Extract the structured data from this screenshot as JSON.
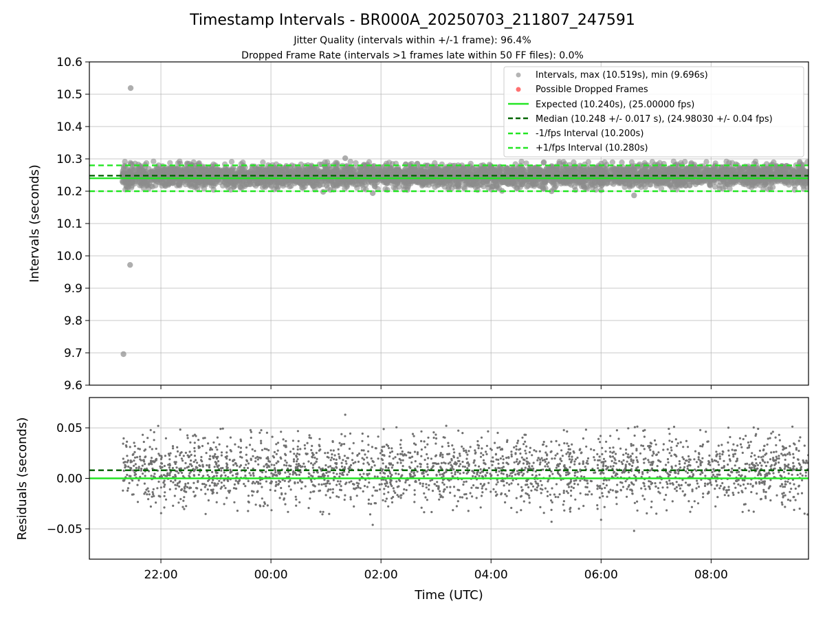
{
  "figure": {
    "title": "Timestamp Intervals - BR000A_20250703_211807_247591",
    "subtitle_1": "Jitter Quality (intervals within +/-1 frame): 96.4%",
    "subtitle_2": "Dropped Frame Rate (intervals >1 frames late within 50 FF files): 0.0%"
  },
  "colors": {
    "intervals": "#8c8c8c",
    "residuals": "#707070",
    "dropped": "#ff4d4d",
    "expected": "#22e622",
    "median": "#006400",
    "fps_band": "#22e622",
    "grid": "#b0b0b0"
  },
  "chart_data": [
    {
      "id": "intervals",
      "type": "scatter",
      "ylabel": "Intervals (seconds)",
      "xlabel": "",
      "x_unit": "hours since 00:00 UTC 2025-07-04",
      "xlim": [
        -3.3,
        9.77
      ],
      "ylim": [
        9.6,
        10.6
      ],
      "grid": true,
      "legend_position": "top-right",
      "x_ticks": [
        {
          "value": -2,
          "label": "22:00"
        },
        {
          "value": 0,
          "label": "00:00"
        },
        {
          "value": 2,
          "label": "02:00"
        },
        {
          "value": 4,
          "label": "04:00"
        },
        {
          "value": 6,
          "label": "06:00"
        },
        {
          "value": 8,
          "label": "08:00"
        }
      ],
      "y_ticks": [
        {
          "value": 9.6,
          "label": "9.6"
        },
        {
          "value": 9.7,
          "label": "9.7"
        },
        {
          "value": 9.8,
          "label": "9.8"
        },
        {
          "value": 9.9,
          "label": "9.9"
        },
        {
          "value": 10.0,
          "label": "10.0"
        },
        {
          "value": 10.1,
          "label": "10.1"
        },
        {
          "value": 10.2,
          "label": "10.2"
        },
        {
          "value": 10.3,
          "label": "10.3"
        },
        {
          "value": 10.4,
          "label": "10.4"
        },
        {
          "value": 10.5,
          "label": "10.5"
        },
        {
          "value": 10.6,
          "label": "10.6"
        }
      ],
      "series": [
        {
          "name": "Intervals, max (10.519s), min (9.696s)",
          "kind": "scatter",
          "x_range": [
            -2.7,
            9.77
          ],
          "y_mean": 10.248,
          "y_std": 0.017,
          "points": [
            {
              "x": -2.55,
              "y": 10.519
            },
            {
              "x": -2.56,
              "y": 9.972
            },
            {
              "x": -2.68,
              "y": 9.696
            },
            {
              "x": 1.35,
              "y": 10.302
            },
            {
              "x": 1.85,
              "y": 10.194
            },
            {
              "x": 6.6,
              "y": 10.187
            },
            {
              "x": 0.95,
              "y": 10.198
            },
            {
              "x": 4.2,
              "y": 10.201
            },
            {
              "x": 6.0,
              "y": 10.203
            },
            {
              "x": 5.1,
              "y": 10.2
            }
          ]
        },
        {
          "name": "Possible Dropped Frames",
          "kind": "scatter",
          "points": []
        },
        {
          "name": "Expected (10.240s), (25.00000 fps)",
          "kind": "hline",
          "y": 10.24
        },
        {
          "name": "Median (10.248 +/- 0.017 s), (24.98030 +/- 0.04 fps)",
          "kind": "hline",
          "y": 10.248
        },
        {
          "name": "-1/fps Interval (10.200s)",
          "kind": "hline",
          "y": 10.2
        },
        {
          "name": "+1/fps Interval (10.280s)",
          "kind": "hline",
          "y": 10.28
        }
      ]
    },
    {
      "id": "residuals",
      "type": "scatter",
      "ylabel": "Residuals (seconds)",
      "xlabel": "Time (UTC)",
      "x_unit": "hours since 00:00 UTC 2025-07-04",
      "xlim": [
        -3.3,
        9.77
      ],
      "ylim": [
        -0.08,
        0.08
      ],
      "grid": true,
      "x_ticks": [
        {
          "value": -2,
          "label": "22:00"
        },
        {
          "value": 0,
          "label": "00:00"
        },
        {
          "value": 2,
          "label": "02:00"
        },
        {
          "value": 4,
          "label": "04:00"
        },
        {
          "value": 6,
          "label": "06:00"
        },
        {
          "value": 8,
          "label": "08:00"
        }
      ],
      "y_ticks": [
        {
          "value": 0.05,
          "label": "0.05"
        },
        {
          "value": 0.0,
          "label": "0.00"
        },
        {
          "value": -0.05,
          "label": "−0.05"
        }
      ],
      "series": [
        {
          "kind": "scatter",
          "x_range": [
            -2.7,
            9.77
          ],
          "y_mean": 0.008,
          "y_std": 0.017,
          "points": [
            {
              "x": 1.35,
              "y": 0.063
            },
            {
              "x": 1.85,
              "y": -0.046
            },
            {
              "x": 6.6,
              "y": -0.052
            },
            {
              "x": 5.1,
              "y": -0.043
            },
            {
              "x": 6.0,
              "y": -0.041
            }
          ]
        },
        {
          "kind": "hline",
          "y": 0.0,
          "role": "expected"
        },
        {
          "kind": "hline",
          "y": 0.008,
          "role": "median"
        }
      ]
    }
  ]
}
